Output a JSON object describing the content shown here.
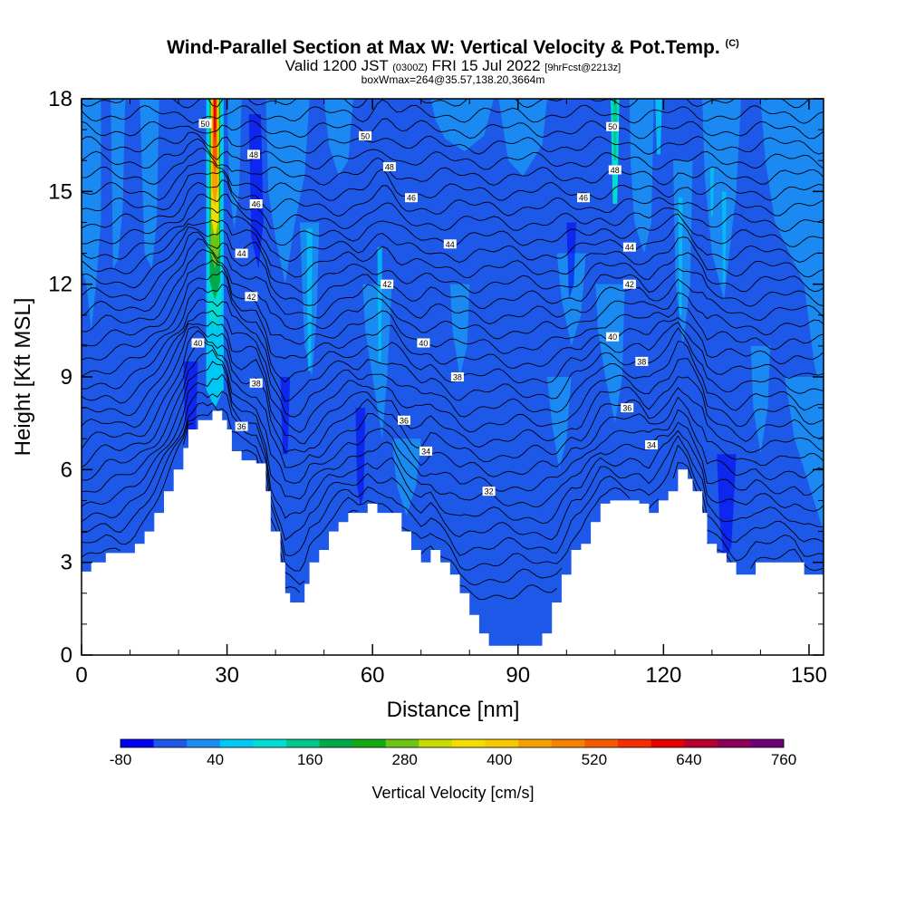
{
  "header": {
    "title": "Wind-Parallel Section at Max W: Vertical Velocity & Pot.Temp.",
    "title_mark": "(C)",
    "valid_prefix": "Valid 1200 JST",
    "valid_utc": "(0300Z)",
    "valid_date": "FRI 15 Jul 2022",
    "forecast_tag": "[9hrFcst@2213z]",
    "box_info": "boxWmax=264@35.57,138.20,3664m"
  },
  "chart_data": {
    "type": "heatmap",
    "xlabel": "Distance [nm]",
    "ylabel": "Height [Kft MSL]",
    "xlim": [
      0,
      153
    ],
    "ylim": [
      0,
      18
    ],
    "x_ticks": [
      0,
      30,
      60,
      90,
      120,
      150
    ],
    "y_ticks": [
      0,
      3,
      6,
      9,
      12,
      15,
      18
    ],
    "terrain": {
      "x": [
        0,
        2,
        5,
        8,
        11,
        13,
        15,
        17,
        19,
        21,
        22,
        24,
        26,
        27,
        29,
        30,
        31,
        33,
        36,
        38,
        39,
        41,
        42,
        43,
        44,
        46,
        47,
        49,
        51,
        53,
        55,
        57,
        59,
        61,
        64,
        66,
        68,
        70,
        72,
        74,
        76,
        78,
        80,
        82,
        84,
        86,
        88,
        90,
        92,
        94,
        95,
        97,
        99,
        101,
        103,
        105,
        107,
        109,
        111,
        113,
        115,
        117,
        119,
        121,
        123,
        125,
        126,
        128,
        129,
        131,
        133,
        135,
        137,
        139,
        141,
        143,
        145,
        147,
        149,
        151,
        153
      ],
      "h": [
        2.7,
        3.0,
        3.3,
        3.3,
        3.6,
        4.0,
        4.6,
        5.3,
        6.0,
        6.7,
        7.3,
        7.6,
        7.6,
        7.9,
        7.6,
        7.3,
        6.6,
        6.3,
        6.2,
        5.3,
        4.0,
        3.0,
        2.0,
        1.7,
        1.7,
        2.3,
        3.0,
        3.4,
        4.0,
        4.3,
        4.6,
        4.6,
        4.9,
        4.6,
        4.6,
        4.0,
        3.4,
        3.0,
        3.4,
        3.0,
        2.6,
        2.0,
        1.3,
        0.7,
        0.3,
        0.3,
        0.3,
        0.3,
        0.3,
        0.3,
        0.7,
        1.7,
        2.6,
        3.4,
        3.6,
        4.3,
        4.9,
        5.0,
        5.0,
        5.0,
        4.9,
        4.6,
        5.0,
        5.3,
        6.0,
        5.7,
        5.3,
        4.6,
        3.6,
        3.3,
        3.0,
        2.6,
        2.6,
        3.0,
        3.0,
        3.0,
        3.0,
        3.0,
        2.6,
        2.6,
        2.6
      ]
    },
    "vertical_velocity_cms": {
      "background_band": "-80 to 0",
      "updraft_columns": [
        {
          "x": 27.5,
          "z_range": [
            8,
            18
          ],
          "max": 640
        },
        {
          "x": 110,
          "z_range": [
            15,
            18
          ],
          "max": 160
        },
        {
          "x": 61.5,
          "z_range": [
            9,
            13.5
          ],
          "max": 80
        },
        {
          "x": 47,
          "z_range": [
            9,
            14
          ],
          "max": 80
        },
        {
          "x": 123.5,
          "z_range": [
            11,
            15
          ],
          "max": 80
        },
        {
          "x": 132.5,
          "z_range": [
            12,
            15
          ],
          "max": 80
        },
        {
          "x": 119,
          "z_range": [
            16,
            18
          ],
          "max": 120
        }
      ],
      "downdraft_columns": [
        {
          "x": 36,
          "z_range": [
            12,
            17
          ],
          "min": -80
        },
        {
          "x": 57.5,
          "z_range": [
            5,
            8
          ],
          "min": -80
        },
        {
          "x": 23,
          "z_range": [
            8,
            13
          ],
          "min": -40
        }
      ]
    },
    "pot_temp_contours": {
      "unit": "C",
      "labels": [
        {
          "v": "50",
          "x": 25.5,
          "z": 17.2
        },
        {
          "v": "48",
          "x": 35.5,
          "z": 16.2
        },
        {
          "v": "46",
          "x": 36.0,
          "z": 14.6
        },
        {
          "v": "44",
          "x": 33.0,
          "z": 13.0
        },
        {
          "v": "42",
          "x": 35.0,
          "z": 11.6
        },
        {
          "v": "40",
          "x": 24.0,
          "z": 10.1
        },
        {
          "v": "38",
          "x": 36.0,
          "z": 8.8
        },
        {
          "v": "36",
          "x": 33.0,
          "z": 7.4
        },
        {
          "v": "50",
          "x": 58.5,
          "z": 16.8
        },
        {
          "v": "48",
          "x": 63.5,
          "z": 15.8
        },
        {
          "v": "46",
          "x": 68.0,
          "z": 14.8
        },
        {
          "v": "44",
          "x": 76.0,
          "z": 13.3
        },
        {
          "v": "42",
          "x": 63.0,
          "z": 12.0
        },
        {
          "v": "40",
          "x": 70.5,
          "z": 10.1
        },
        {
          "v": "38",
          "x": 77.5,
          "z": 9.0
        },
        {
          "v": "36",
          "x": 66.5,
          "z": 7.6
        },
        {
          "v": "34",
          "x": 71.0,
          "z": 6.6
        },
        {
          "v": "32",
          "x": 84.0,
          "z": 5.3
        },
        {
          "v": "50",
          "x": 109.5,
          "z": 17.1
        },
        {
          "v": "48",
          "x": 110.0,
          "z": 15.7
        },
        {
          "v": "46",
          "x": 103.5,
          "z": 14.8
        },
        {
          "v": "44",
          "x": 113.0,
          "z": 13.2
        },
        {
          "v": "42",
          "x": 113.0,
          "z": 12.0
        },
        {
          "v": "40",
          "x": 109.5,
          "z": 10.3
        },
        {
          "v": "38",
          "x": 115.5,
          "z": 9.5
        },
        {
          "v": "36",
          "x": 112.5,
          "z": 8.0
        },
        {
          "v": "34",
          "x": 117.5,
          "z": 6.8
        }
      ]
    },
    "colorbar": {
      "label": "Vertical Velocity [cm/s]",
      "tick_labels": [
        "-80",
        "40",
        "160",
        "280",
        "400",
        "520",
        "640",
        "760"
      ],
      "colors": [
        "#0000f2",
        "#1e58e8",
        "#1a8cf2",
        "#00c8f5",
        "#00dcd2",
        "#00c88c",
        "#00aa4b",
        "#14aa14",
        "#6ec414",
        "#c8dc00",
        "#f5dc00",
        "#f5c800",
        "#f5a000",
        "#f58200",
        "#f55a00",
        "#f52d00",
        "#e60000",
        "#b4002d",
        "#8c005a",
        "#6e0078"
      ]
    }
  }
}
